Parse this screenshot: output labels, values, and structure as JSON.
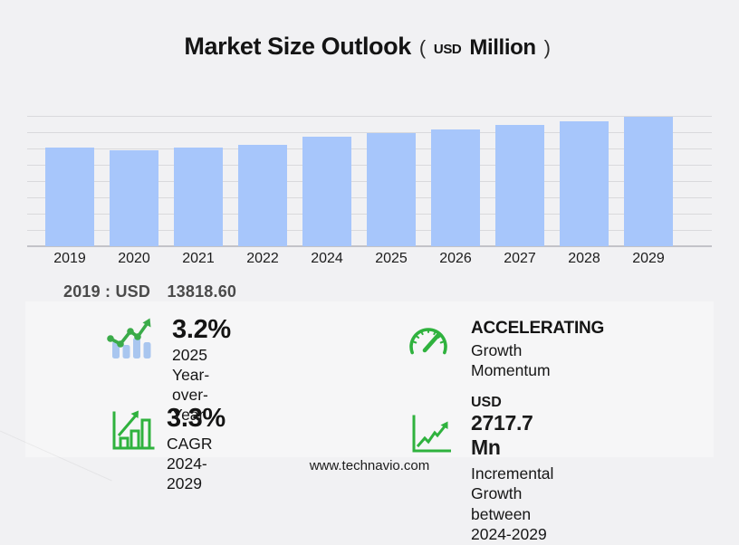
{
  "title": {
    "main": "Market Size Outlook",
    "paren_open": "(",
    "unit_small": "USD",
    "unit_big": "Million",
    "paren_close": ")"
  },
  "chart_data": {
    "type": "bar",
    "title": "Market Size Outlook (USD Million)",
    "ylabel": "USD Million",
    "xlabel": "",
    "categories": [
      "2019",
      "2020",
      "2021",
      "2022",
      "2024",
      "2025",
      "2026",
      "2027",
      "2028",
      "2029"
    ],
    "values": [
      13818.6,
      13480,
      13880,
      14220,
      15419,
      15912,
      16437,
      16980,
      17540,
      18137
    ],
    "labeled_values": {
      "2019": "13818.60"
    },
    "ylim": [
      0,
      18300
    ],
    "grid": true,
    "gridline_count": 8,
    "legend": "none",
    "bar_color": "#a7c6fb"
  },
  "annotation": {
    "year": "2019",
    "separator": ":",
    "currency": "USD",
    "value": "13818.60"
  },
  "stats": [
    {
      "icon": "bar-trend-icon",
      "headline": "3.2%",
      "caption": "2025 Year-over-Year"
    },
    {
      "icon": "speedometer-icon",
      "headline": "ACCELERATING",
      "caption": "Growth Momentum"
    },
    {
      "icon": "growth-bars-icon",
      "headline": "3.3%",
      "caption": "CAGR 2024-2029"
    },
    {
      "icon": "line-chart-icon",
      "headline_prefix": "USD",
      "headline": "2717.7 Mn",
      "caption": "Incremental Growth",
      "caption2": "between 2024-2029"
    }
  ],
  "footer": {
    "url": "www.technavio.com"
  },
  "colors": {
    "background": "#f1f1f3",
    "bar": "#a7c6fb",
    "icon_green": "#2fb23e",
    "icon_blue": "#a9c6ef",
    "gridline": "#d9d9dc"
  }
}
